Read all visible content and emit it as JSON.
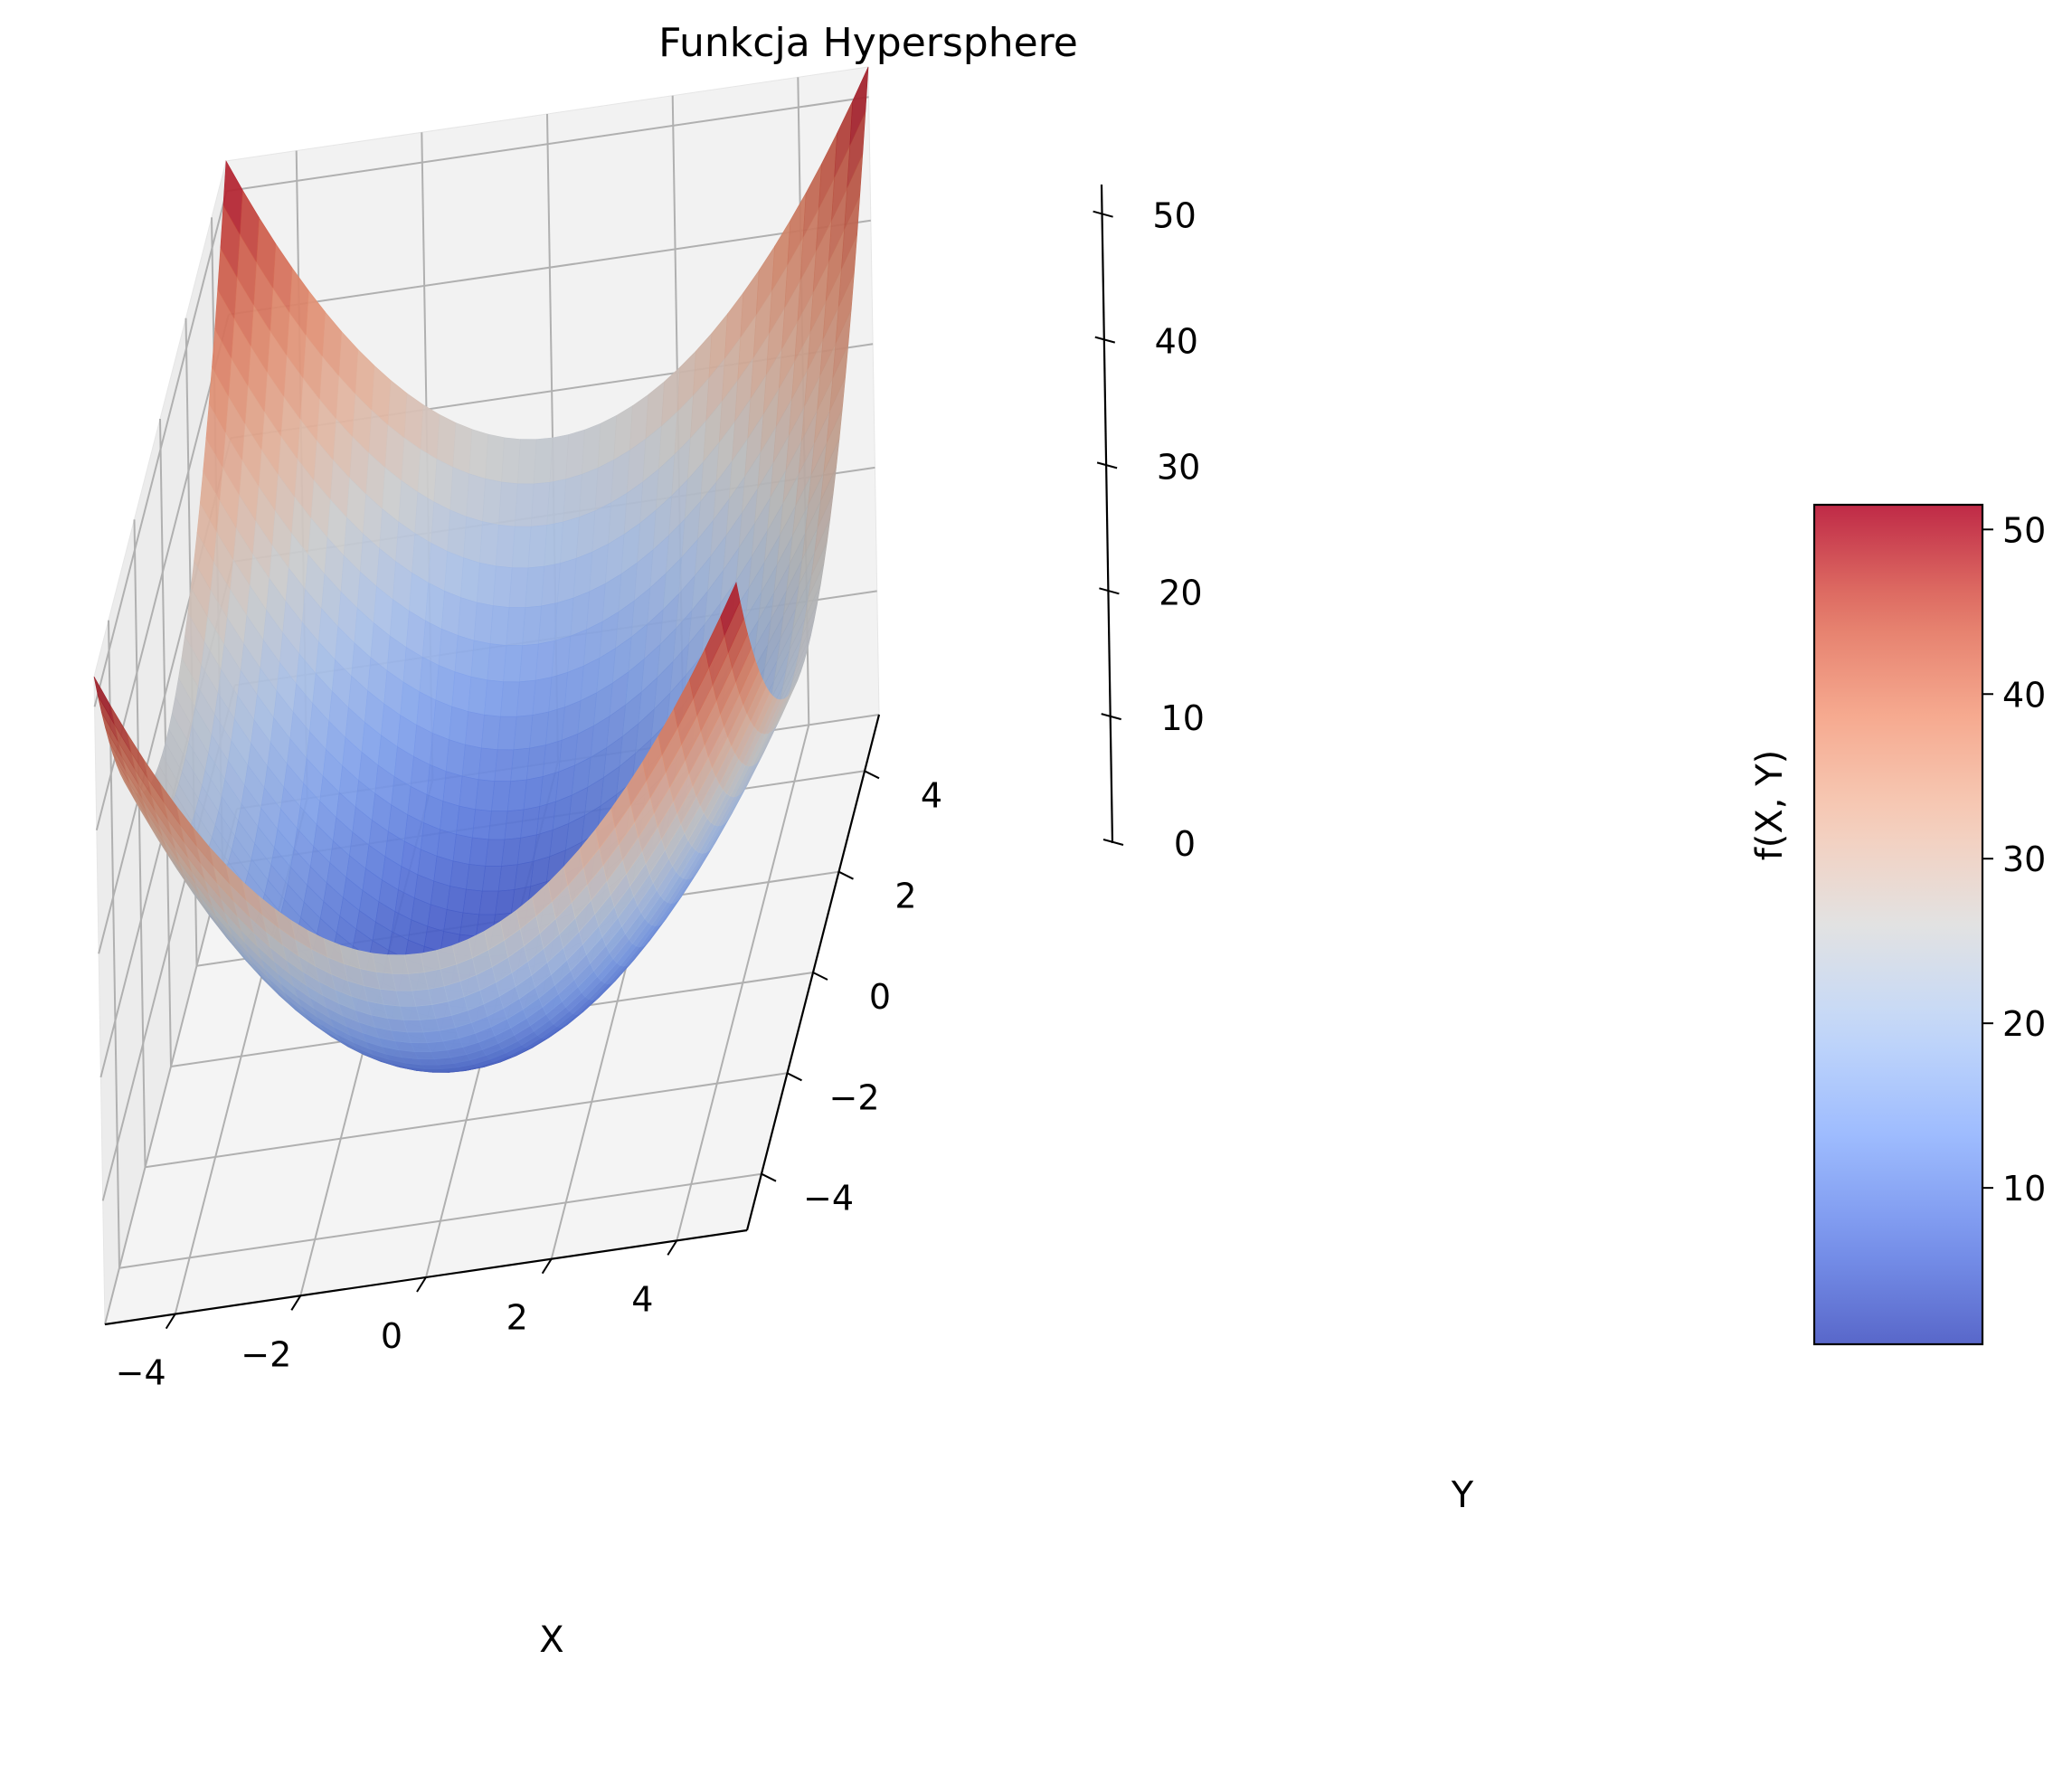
{
  "chart_data": {
    "type": "surface3d",
    "function": "f(X, Y) = X^2 + Y^2",
    "title": "Funkcja Hypersphere",
    "xlabel": "X",
    "ylabel": "Y",
    "zlabel": "f(X, Y)",
    "xlim": [
      -5.12,
      5.12
    ],
    "ylim": [
      -5.12,
      5.12
    ],
    "zlim": [
      0,
      52.43
    ],
    "x_ticks": [
      -4,
      -2,
      0,
      2,
      4
    ],
    "y_ticks": [
      -4,
      -2,
      0,
      2,
      4
    ],
    "z_ticks": [
      0,
      10,
      20,
      30,
      40,
      50
    ],
    "x_tick_labels": [
      "−4",
      "−2",
      "0",
      "2",
      "4"
    ],
    "y_tick_labels": [
      "−4",
      "−2",
      "0",
      "2",
      "4"
    ],
    "z_tick_labels": [
      "0",
      "10",
      "20",
      "30",
      "40",
      "50"
    ],
    "surface": {
      "x_range": [
        -5.12,
        5.12
      ],
      "y_range": [
        -5.12,
        5.12
      ],
      "grid_steps": 40,
      "z_min": 0,
      "z_max": 52.43,
      "corner_values": [
        {
          "x": -5.12,
          "y": -5.12,
          "z": 52.43
        },
        {
          "x": -5.12,
          "y": 5.12,
          "z": 52.43
        },
        {
          "x": 5.12,
          "y": -5.12,
          "z": 52.43
        },
        {
          "x": 5.12,
          "y": 5.12,
          "z": 52.43
        }
      ],
      "minimum": {
        "x": 0,
        "y": 0,
        "z": 0
      }
    },
    "colormap": "coolwarm",
    "colorbar": {
      "ticks": [
        10,
        20,
        30,
        40,
        50
      ],
      "tick_labels": [
        "10",
        "20",
        "30",
        "40",
        "50"
      ],
      "range": [
        0.5,
        51.5
      ]
    },
    "grid": true,
    "pane_color": "#f2f2f2",
    "grid_color": "#b0b0b0"
  }
}
